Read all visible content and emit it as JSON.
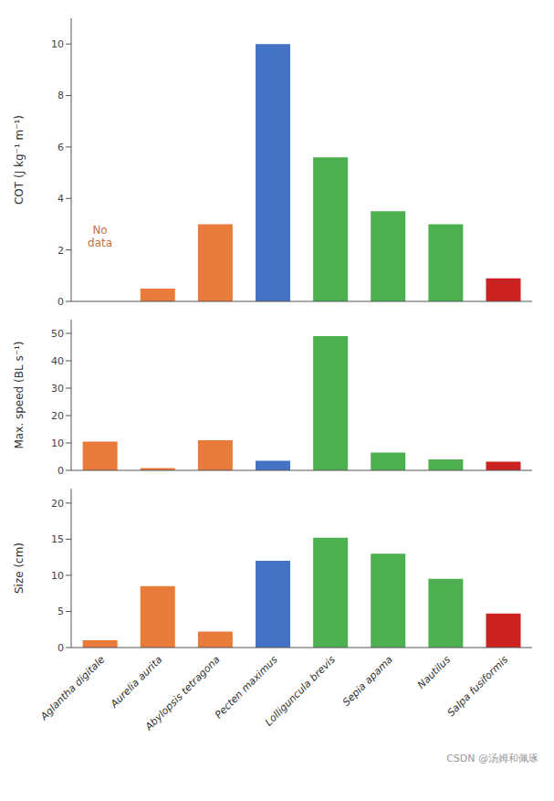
{
  "chart_data": [
    {
      "type": "bar",
      "categories": [
        "Aglantha digitale",
        "Aurelia aurita",
        "Abylopsis tetragona",
        "Pecten maximus",
        "Lolliguncula brevis",
        "Sepia apama",
        "Nautilus",
        "Salpa fusiformis"
      ],
      "values": [
        null,
        0.5,
        3.0,
        10.0,
        5.6,
        3.5,
        3.0,
        0.9
      ],
      "colors": [
        "#E87B3A",
        "#E87B3A",
        "#E87B3A",
        "#4472C4",
        "#4CAF50",
        "#4CAF50",
        "#4CAF50",
        "#CC2222"
      ],
      "ylabel": "COT (J kg⁻¹ m⁻¹)",
      "ylim": [
        0,
        11
      ],
      "yticks": [
        0,
        2,
        4,
        6,
        8,
        10
      ],
      "grid": false,
      "tick_labels": "y",
      "annotations": [
        {
          "text": "No\ndata",
          "color": "#C47040"
        }
      ]
    },
    {
      "type": "bar",
      "categories": [
        "Aglantha digitale",
        "Aurelia aurita",
        "Abylopsis tetragona",
        "Pecten maximus",
        "Lolliguncula brevis",
        "Sepia apama",
        "Nautilus",
        "Salpa fusiformis"
      ],
      "values": [
        10.5,
        0.8,
        11.0,
        3.5,
        49.0,
        6.5,
        4.0,
        3.2
      ],
      "colors": [
        "#E87B3A",
        "#E87B3A",
        "#E87B3A",
        "#4472C4",
        "#4CAF50",
        "#4CAF50",
        "#4CAF50",
        "#CC2222"
      ],
      "ylabel": "Max. speed (BL s⁻¹)",
      "ylim": [
        0,
        55
      ],
      "yticks": [
        0,
        10,
        20,
        30,
        40,
        50
      ],
      "grid": false,
      "tick_labels": "y"
    },
    {
      "type": "bar",
      "categories": [
        "Aglantha digitale",
        "Aurelia aurita",
        "Abylopsis tetragona",
        "Pecten maximus",
        "Lolliguncula brevis",
        "Sepia apama",
        "Nautilus",
        "Salpa fusiformis"
      ],
      "values": [
        1.0,
        8.5,
        2.2,
        12.0,
        15.2,
        13.0,
        9.5,
        4.7
      ],
      "colors": [
        "#E87B3A",
        "#E87B3A",
        "#E87B3A",
        "#4472C4",
        "#4CAF50",
        "#4CAF50",
        "#4CAF50",
        "#CC2222"
      ],
      "ylabel": "Size (cm)",
      "ylim": [
        0,
        22
      ],
      "yticks": [
        0,
        5,
        10,
        15,
        20
      ],
      "grid": false,
      "annotations": [
        {
          "text": "CSDN @汤姆和佩琢",
          "color": "#999999"
        }
      ]
    }
  ]
}
